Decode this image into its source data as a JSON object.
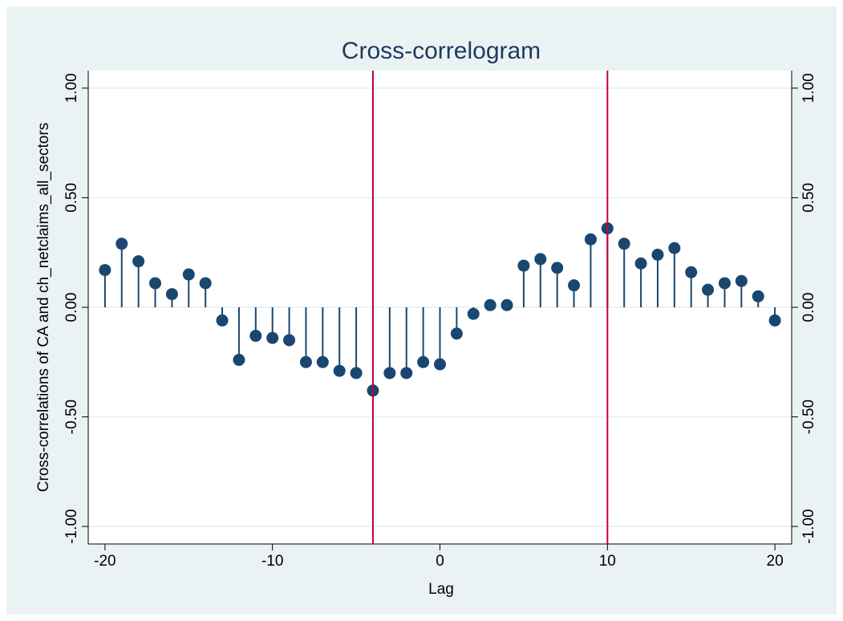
{
  "chart_data": {
    "type": "stem",
    "title": "Cross-correlogram",
    "x_label": "Lag",
    "y_label": "Cross-correlations of CA and ch_netclaims_all_sectors",
    "x": [
      -20,
      -19,
      -18,
      -17,
      -16,
      -15,
      -14,
      -13,
      -12,
      -11,
      -10,
      -9,
      -8,
      -7,
      -6,
      -5,
      -4,
      -3,
      -2,
      -1,
      0,
      1,
      2,
      3,
      4,
      5,
      6,
      7,
      8,
      9,
      10,
      11,
      12,
      13,
      14,
      15,
      16,
      17,
      18,
      19,
      20
    ],
    "values": [
      0.17,
      0.29,
      0.21,
      0.11,
      0.06,
      0.15,
      0.11,
      -0.06,
      -0.24,
      -0.13,
      -0.14,
      -0.15,
      -0.25,
      -0.25,
      -0.29,
      -0.3,
      -0.38,
      -0.3,
      -0.3,
      -0.25,
      -0.26,
      -0.12,
      -0.03,
      0.01,
      0.01,
      0.19,
      0.22,
      0.18,
      0.1,
      0.31,
      0.36,
      0.29,
      0.2,
      0.24,
      0.27,
      0.16,
      0.08,
      0.11,
      0.12,
      0.05,
      -0.06
    ],
    "color": "#1a476f",
    "xlim": [
      -21,
      21
    ],
    "xticks": [
      -20,
      -10,
      0,
      10,
      20
    ],
    "ylim": [
      -1.08,
      1.08
    ],
    "yticks": [
      {
        "value": 1,
        "label": "1.00"
      },
      {
        "value": 0.5,
        "label": "0.50"
      },
      {
        "value": 0,
        "label": "0.00"
      },
      {
        "value": -0.5,
        "label": "-0.50"
      },
      {
        "value": -1,
        "label": "-1.00"
      }
    ],
    "vlines": [
      -4,
      10
    ],
    "vline_color": "#c10534",
    "grid": true,
    "right_axis": true
  }
}
